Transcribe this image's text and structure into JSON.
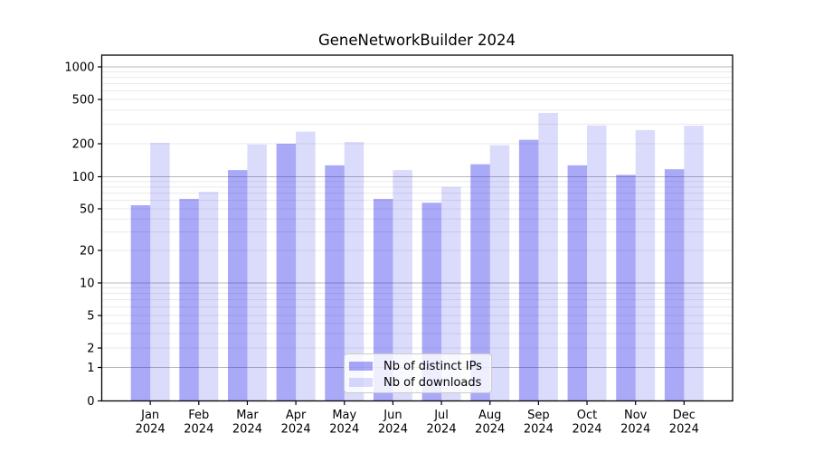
{
  "chart_data": {
    "type": "bar",
    "title": "GeneNetworkBuilder 2024",
    "categories": [
      "Jan",
      "Feb",
      "Mar",
      "Apr",
      "May",
      "Jun",
      "Jul",
      "Aug",
      "Sep",
      "Oct",
      "Nov",
      "Dec"
    ],
    "category_year": "2024",
    "series": [
      {
        "name": "Nb of distinct IPs",
        "color": "#1e1eeb",
        "alpha": 0.38,
        "values": [
          54,
          62,
          115,
          200,
          127,
          62,
          57,
          130,
          217,
          127,
          104,
          117
        ]
      },
      {
        "name": "Nb of downloads",
        "color": "#1e1eeb",
        "alpha": 0.16,
        "values": [
          204,
          72,
          197,
          257,
          207,
          115,
          80,
          194,
          378,
          292,
          265,
          290
        ]
      }
    ],
    "xlabel": "",
    "ylabel": "",
    "y_ticks": [
      0,
      1,
      2,
      5,
      10,
      20,
      50,
      100,
      200,
      500,
      1000
    ],
    "y_gridlines_major": [
      1,
      10,
      100,
      1000
    ],
    "y_gridlines_minor": [
      2,
      3,
      4,
      5,
      6,
      7,
      8,
      9,
      20,
      30,
      40,
      50,
      60,
      70,
      80,
      90,
      200,
      300,
      400,
      500,
      600,
      700,
      800,
      900
    ],
    "ylim": [
      0,
      1000
    ],
    "scale": "log-like with compressed 0-2 region",
    "grid": true,
    "legend_position": "inside lower-center",
    "colors": {
      "grid_major": "#b8b8b8",
      "grid_minor": "#e9e9e9",
      "spine": "#000000",
      "text": "#000000",
      "background": "#ffffff"
    }
  }
}
